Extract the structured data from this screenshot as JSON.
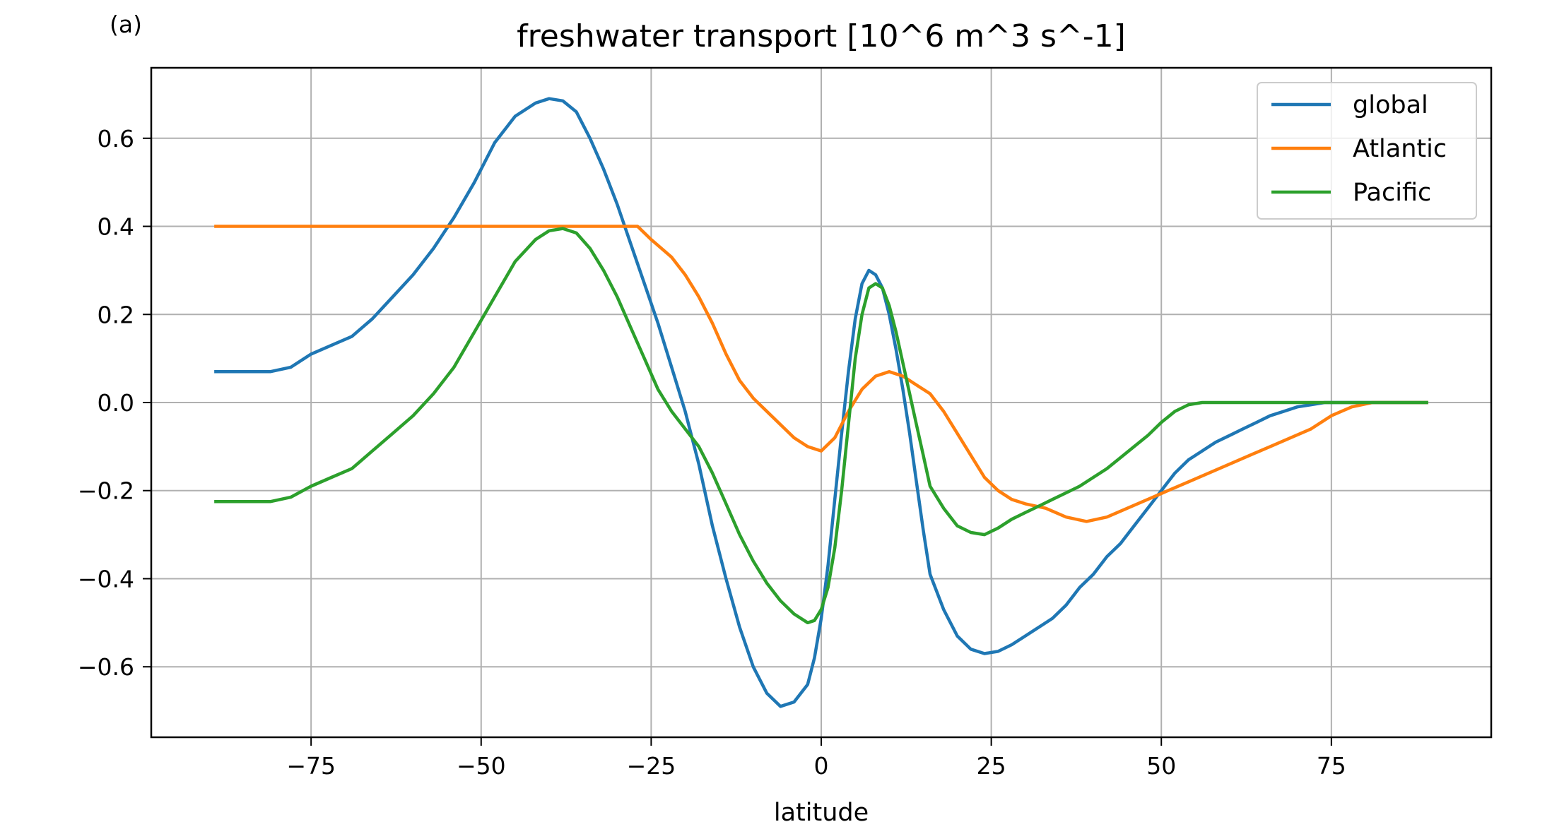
{
  "chart_data": {
    "type": "line",
    "panel_label": "(a)",
    "title": "freshwater transport [10^6 m^3 s^-1]",
    "xlabel": "latitude",
    "ylabel": "",
    "xlim": [
      -98.5,
      98.5
    ],
    "ylim": [
      -0.76,
      0.76
    ],
    "xticks": [
      -75,
      -50,
      -25,
      0,
      25,
      50,
      75
    ],
    "xtick_labels": [
      "−75",
      "−50",
      "−25",
      "0",
      "25",
      "50",
      "75"
    ],
    "yticks": [
      0.6,
      0.4,
      0.2,
      0.0,
      -0.2,
      -0.4,
      -0.6
    ],
    "ytick_labels": [
      "0.6",
      "0.4",
      "0.2",
      "0.0",
      "−0.2",
      "−0.4",
      "−0.6"
    ],
    "grid": true,
    "legend_position": "top-right",
    "series": [
      {
        "name": "global",
        "color": "#1f77b4",
        "x": [
          -89,
          -84,
          -81,
          -78,
          -75,
          -72,
          -69,
          -66,
          -63,
          -60,
          -57,
          -54,
          -51,
          -48,
          -45,
          -42,
          -40,
          -38,
          -36,
          -34,
          -32,
          -30,
          -28,
          -26,
          -24,
          -22,
          -20,
          -18,
          -16,
          -14,
          -12,
          -10,
          -8,
          -6,
          -4,
          -2,
          -1,
          0,
          1,
          2,
          3,
          4,
          5,
          6,
          7,
          8,
          9,
          10,
          11,
          12,
          13,
          14,
          15,
          16,
          18,
          20,
          22,
          24,
          26,
          28,
          30,
          32,
          34,
          36,
          38,
          40,
          42,
          44,
          46,
          48,
          50,
          52,
          54,
          56,
          58,
          60,
          62,
          64,
          66,
          68,
          70,
          72,
          74,
          76,
          80,
          84,
          89
        ],
        "y": [
          0.07,
          0.07,
          0.07,
          0.08,
          0.11,
          0.13,
          0.15,
          0.19,
          0.24,
          0.29,
          0.35,
          0.42,
          0.5,
          0.59,
          0.65,
          0.68,
          0.69,
          0.685,
          0.66,
          0.6,
          0.53,
          0.45,
          0.36,
          0.27,
          0.18,
          0.08,
          -0.02,
          -0.14,
          -0.28,
          -0.4,
          -0.51,
          -0.6,
          -0.66,
          -0.69,
          -0.68,
          -0.64,
          -0.58,
          -0.49,
          -0.37,
          -0.22,
          -0.07,
          0.07,
          0.19,
          0.27,
          0.3,
          0.29,
          0.26,
          0.2,
          0.12,
          0.03,
          -0.07,
          -0.18,
          -0.29,
          -0.39,
          -0.47,
          -0.53,
          -0.56,
          -0.57,
          -0.565,
          -0.55,
          -0.53,
          -0.51,
          -0.49,
          -0.46,
          -0.42,
          -0.39,
          -0.35,
          -0.32,
          -0.28,
          -0.24,
          -0.2,
          -0.16,
          -0.13,
          -0.11,
          -0.09,
          -0.075,
          -0.06,
          -0.045,
          -0.03,
          -0.02,
          -0.01,
          -0.005,
          0.0,
          0.0,
          0.0,
          0.0,
          0.0
        ]
      },
      {
        "name": "Atlantic",
        "color": "#ff7f0e",
        "x": [
          -89,
          -80,
          -70,
          -60,
          -50,
          -40,
          -30,
          -27,
          -25,
          -22,
          -20,
          -18,
          -16,
          -14,
          -12,
          -10,
          -8,
          -6,
          -4,
          -2,
          0,
          2,
          4,
          6,
          8,
          10,
          12,
          14,
          16,
          18,
          20,
          22,
          24,
          26,
          28,
          30,
          33,
          36,
          39,
          42,
          45,
          48,
          51,
          54,
          57,
          60,
          63,
          66,
          69,
          72,
          75,
          78,
          81,
          84,
          89
        ],
        "y": [
          0.4,
          0.4,
          0.4,
          0.4,
          0.4,
          0.4,
          0.4,
          0.4,
          0.37,
          0.33,
          0.29,
          0.24,
          0.18,
          0.11,
          0.05,
          0.01,
          -0.02,
          -0.05,
          -0.08,
          -0.1,
          -0.11,
          -0.08,
          -0.02,
          0.03,
          0.06,
          0.07,
          0.06,
          0.04,
          0.02,
          -0.02,
          -0.07,
          -0.12,
          -0.17,
          -0.2,
          -0.22,
          -0.23,
          -0.24,
          -0.26,
          -0.27,
          -0.26,
          -0.24,
          -0.22,
          -0.2,
          -0.18,
          -0.16,
          -0.14,
          -0.12,
          -0.1,
          -0.08,
          -0.06,
          -0.03,
          -0.01,
          0.0,
          0.0,
          0.0
        ]
      },
      {
        "name": "Pacific",
        "color": "#2ca02c",
        "x": [
          -89,
          -84,
          -81,
          -78,
          -75,
          -72,
          -69,
          -66,
          -63,
          -60,
          -57,
          -54,
          -51,
          -48,
          -45,
          -42,
          -40,
          -38,
          -36,
          -34,
          -32,
          -30,
          -28,
          -26,
          -24,
          -22,
          -20,
          -18,
          -16,
          -14,
          -12,
          -10,
          -8,
          -6,
          -4,
          -2,
          -1,
          0,
          1,
          2,
          3,
          4,
          5,
          6,
          7,
          8,
          9,
          10,
          11,
          12,
          13,
          14,
          15,
          16,
          18,
          20,
          22,
          24,
          26,
          28,
          30,
          32,
          34,
          36,
          38,
          40,
          42,
          44,
          46,
          48,
          50,
          52,
          54,
          56,
          58,
          60,
          62,
          66,
          70,
          75,
          80,
          89
        ],
        "y": [
          -0.225,
          -0.225,
          -0.225,
          -0.215,
          -0.19,
          -0.17,
          -0.15,
          -0.11,
          -0.07,
          -0.03,
          0.02,
          0.08,
          0.16,
          0.24,
          0.32,
          0.37,
          0.39,
          0.395,
          0.385,
          0.35,
          0.3,
          0.24,
          0.17,
          0.1,
          0.03,
          -0.02,
          -0.06,
          -0.1,
          -0.16,
          -0.23,
          -0.3,
          -0.36,
          -0.41,
          -0.45,
          -0.48,
          -0.5,
          -0.495,
          -0.47,
          -0.42,
          -0.33,
          -0.2,
          -0.05,
          0.1,
          0.2,
          0.26,
          0.27,
          0.26,
          0.22,
          0.16,
          0.09,
          0.02,
          -0.05,
          -0.12,
          -0.19,
          -0.24,
          -0.28,
          -0.295,
          -0.3,
          -0.285,
          -0.265,
          -0.25,
          -0.235,
          -0.22,
          -0.205,
          -0.19,
          -0.17,
          -0.15,
          -0.125,
          -0.1,
          -0.075,
          -0.045,
          -0.02,
          -0.005,
          0.0,
          0.0,
          0.0,
          0.0,
          0.0,
          0.0,
          0.0,
          0.0,
          0.0
        ]
      }
    ]
  }
}
